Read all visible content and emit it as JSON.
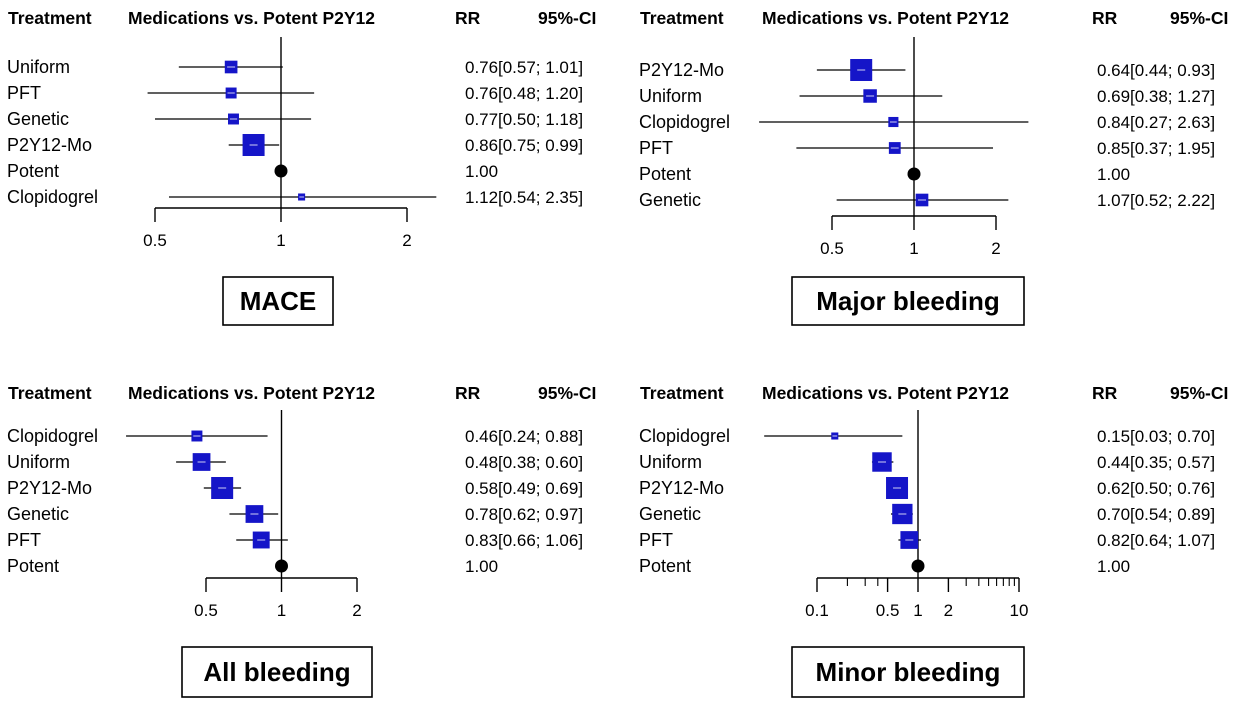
{
  "colors": {
    "box": "#1515c8",
    "ref": "#000000",
    "line": "#000000"
  },
  "chart_data": [
    {
      "type": "forest",
      "title": "MACE",
      "columns": {
        "treatment": "Treatment",
        "comparison": "Medications vs. Potent P2Y12",
        "rr": "RR",
        "ci": "95%-CI"
      },
      "reference": "Potent",
      "xscale": "log",
      "xlim": [
        0.5,
        2
      ],
      "xticks": [
        {
          "v": 0.5,
          "label": "0.5"
        },
        {
          "v": 1,
          "label": "1"
        },
        {
          "v": 2,
          "label": "2"
        }
      ],
      "rows": [
        {
          "name": "Uniform",
          "rr": 0.76,
          "lo": 0.57,
          "hi": 1.01,
          "rr_text": "0.76",
          "ci_text": "[0.57; 1.01]",
          "weight": 0.45
        },
        {
          "name": "PFT",
          "rr": 0.76,
          "lo": 0.48,
          "hi": 1.2,
          "rr_text": "0.76",
          "ci_text": "[0.48; 1.20]",
          "weight": 0.35
        },
        {
          "name": "Genetic",
          "rr": 0.77,
          "lo": 0.5,
          "hi": 1.18,
          "rr_text": "0.77",
          "ci_text": "[0.50; 1.18]",
          "weight": 0.35
        },
        {
          "name": "P2Y12-Mo",
          "rr": 0.86,
          "lo": 0.75,
          "hi": 0.99,
          "rr_text": "0.86",
          "ci_text": "[0.75; 0.99]",
          "weight": 1.0
        },
        {
          "name": "Potent",
          "rr": 1.0,
          "lo": null,
          "hi": null,
          "rr_text": "1.00",
          "ci_text": "",
          "weight": 0,
          "reference": true
        },
        {
          "name": "Clopidogrel",
          "rr": 1.12,
          "lo": 0.54,
          "hi": 2.35,
          "rr_text": "1.12",
          "ci_text": "[0.54; 2.35]",
          "weight": 0.12
        }
      ]
    },
    {
      "type": "forest",
      "title": "Major bleeding",
      "columns": {
        "treatment": "Treatment",
        "comparison": "Medications vs. Potent P2Y12",
        "rr": "RR",
        "ci": "95%-CI"
      },
      "reference": "Potent",
      "xscale": "log",
      "xlim": [
        0.5,
        2
      ],
      "xticks": [
        {
          "v": 0.5,
          "label": "0.5"
        },
        {
          "v": 1,
          "label": "1"
        },
        {
          "v": 2,
          "label": "2"
        }
      ],
      "rows": [
        {
          "name": "P2Y12-Mo",
          "rr": 0.64,
          "lo": 0.44,
          "hi": 0.93,
          "rr_text": "0.64",
          "ci_text": "[0.44; 0.93]",
          "weight": 1.0
        },
        {
          "name": "Uniform",
          "rr": 0.69,
          "lo": 0.38,
          "hi": 1.27,
          "rr_text": "0.69",
          "ci_text": "[0.38; 1.27]",
          "weight": 0.5
        },
        {
          "name": "Clopidogrel",
          "rr": 0.84,
          "lo": 0.27,
          "hi": 2.63,
          "rr_text": "0.84",
          "ci_text": "[0.27; 2.63]",
          "weight": 0.3
        },
        {
          "name": "PFT",
          "rr": 0.85,
          "lo": 0.37,
          "hi": 1.95,
          "rr_text": "0.85",
          "ci_text": "[0.37; 1.95]",
          "weight": 0.4
        },
        {
          "name": "Potent",
          "rr": 1.0,
          "lo": null,
          "hi": null,
          "rr_text": "1.00",
          "ci_text": "",
          "weight": 0,
          "reference": true
        },
        {
          "name": "Genetic",
          "rr": 1.07,
          "lo": 0.52,
          "hi": 2.22,
          "rr_text": "1.07",
          "ci_text": "[0.52; 2.22]",
          "weight": 0.45
        }
      ]
    },
    {
      "type": "forest",
      "title": "All bleeding",
      "columns": {
        "treatment": "Treatment",
        "comparison": "Medications vs. Potent P2Y12",
        "rr": "RR",
        "ci": "95%-CI"
      },
      "reference": "Potent",
      "xscale": "log",
      "xlim": [
        0.5,
        2
      ],
      "xticks": [
        {
          "v": 0.5,
          "label": "0.5"
        },
        {
          "v": 1,
          "label": "1"
        },
        {
          "v": 2,
          "label": "2"
        }
      ],
      "rows": [
        {
          "name": "Clopidogrel",
          "rr": 0.46,
          "lo": 0.24,
          "hi": 0.88,
          "rr_text": "0.46",
          "ci_text": "[0.24; 0.88]",
          "weight": 0.35
        },
        {
          "name": "Uniform",
          "rr": 0.48,
          "lo": 0.38,
          "hi": 0.6,
          "rr_text": "0.48",
          "ci_text": "[0.38; 0.60]",
          "weight": 0.75
        },
        {
          "name": "P2Y12-Mo",
          "rr": 0.58,
          "lo": 0.49,
          "hi": 0.69,
          "rr_text": "0.58",
          "ci_text": "[0.49; 0.69]",
          "weight": 1.0
        },
        {
          "name": "Genetic",
          "rr": 0.78,
          "lo": 0.62,
          "hi": 0.97,
          "rr_text": "0.78",
          "ci_text": "[0.62; 0.97]",
          "weight": 0.75
        },
        {
          "name": "PFT",
          "rr": 0.83,
          "lo": 0.66,
          "hi": 1.06,
          "rr_text": "0.83",
          "ci_text": "[0.66; 1.06]",
          "weight": 0.7
        },
        {
          "name": "Potent",
          "rr": 1.0,
          "lo": null,
          "hi": null,
          "rr_text": "1.00",
          "ci_text": "",
          "weight": 0,
          "reference": true
        }
      ]
    },
    {
      "type": "forest",
      "title": "Minor bleeding",
      "columns": {
        "treatment": "Treatment",
        "comparison": "Medications vs. Potent P2Y12",
        "rr": "RR",
        "ci": "95%-CI"
      },
      "reference": "Potent",
      "xscale": "log",
      "xlim": [
        0.1,
        10
      ],
      "xticks": [
        {
          "v": 0.1,
          "label": "0.1"
        },
        {
          "v": 0.5,
          "label": "0.5"
        },
        {
          "v": 1,
          "label": "1"
        },
        {
          "v": 2,
          "label": "2"
        },
        {
          "v": 10,
          "label": "10"
        }
      ],
      "minor_ticks": [
        0.2,
        0.3,
        0.4,
        3,
        4,
        5,
        6,
        7,
        8,
        9
      ],
      "rows": [
        {
          "name": "Clopidogrel",
          "rr": 0.15,
          "lo": 0.03,
          "hi": 0.7,
          "rr_text": "0.15",
          "ci_text": "[0.03; 0.70]",
          "weight": 0.12
        },
        {
          "name": "Uniform",
          "rr": 0.44,
          "lo": 0.35,
          "hi": 0.57,
          "rr_text": "0.44",
          "ci_text": "[0.35; 0.57]",
          "weight": 0.85
        },
        {
          "name": "P2Y12-Mo",
          "rr": 0.62,
          "lo": 0.5,
          "hi": 0.76,
          "rr_text": "0.62",
          "ci_text": "[0.50; 0.76]",
          "weight": 1.0
        },
        {
          "name": "Genetic",
          "rr": 0.7,
          "lo": 0.54,
          "hi": 0.89,
          "rr_text": "0.70",
          "ci_text": "[0.54; 0.89]",
          "weight": 0.9
        },
        {
          "name": "PFT",
          "rr": 0.82,
          "lo": 0.64,
          "hi": 1.07,
          "rr_text": "0.82",
          "ci_text": "[0.64; 1.07]",
          "weight": 0.75
        },
        {
          "name": "Potent",
          "rr": 1.0,
          "lo": null,
          "hi": null,
          "rr_text": "1.00",
          "ci_text": "",
          "weight": 0,
          "reference": true
        }
      ]
    }
  ]
}
